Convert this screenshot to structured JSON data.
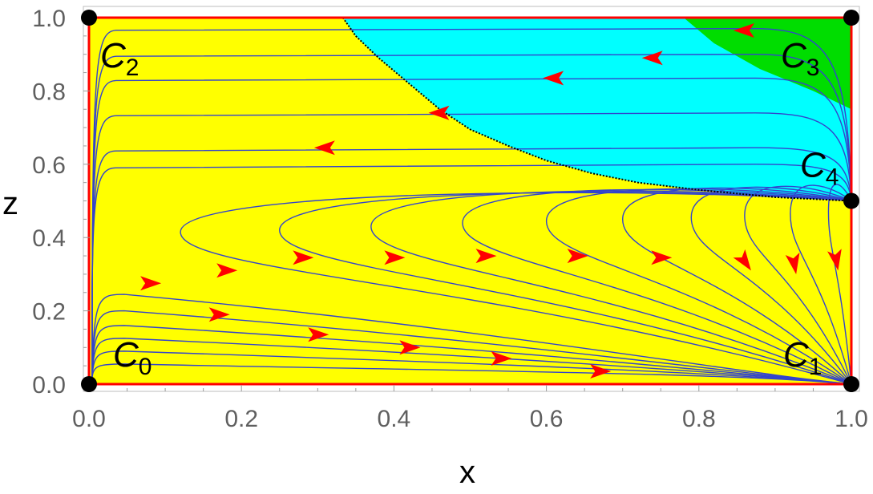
{
  "chart_data": {
    "type": "phase-portrait",
    "title": "",
    "xlabel": "x",
    "ylabel": "z",
    "xlim": [
      0,
      1
    ],
    "ylim": [
      0,
      1
    ],
    "xticks": [
      "0.0",
      "0.2",
      "0.4",
      "0.6",
      "0.8",
      "1.0"
    ],
    "yticks": [
      "0.0",
      "0.2",
      "0.4",
      "0.6",
      "0.8",
      "1.0"
    ],
    "colors": {
      "yellow_region": "#ffff00",
      "cyan_region": "#00ffff",
      "green_region": "#00dd00",
      "streamline": "#3344cc",
      "arrow": "#ff0000",
      "boundary": "#ff0000",
      "separatrix": "#000000",
      "point": "#000000"
    },
    "regions": [
      {
        "name": "yellow",
        "color": "#ffff00"
      },
      {
        "name": "cyan",
        "color": "#00ffff",
        "boundary": "separatrix"
      },
      {
        "name": "green",
        "color": "#00dd00",
        "boundary": "curve"
      }
    ],
    "separatrix": {
      "style": "dotted",
      "points": [
        [
          0.333,
          1.0
        ],
        [
          0.35,
          0.95
        ],
        [
          0.38,
          0.89
        ],
        [
          0.42,
          0.82
        ],
        [
          0.46,
          0.75
        ],
        [
          0.5,
          0.695
        ],
        [
          0.55,
          0.65
        ],
        [
          0.6,
          0.61
        ],
        [
          0.66,
          0.575
        ],
        [
          0.72,
          0.55
        ],
        [
          0.8,
          0.53
        ],
        [
          0.9,
          0.51
        ],
        [
          1.0,
          0.5
        ]
      ]
    },
    "green_boundary": [
      [
        0.78,
        1.0
      ],
      [
        0.82,
        0.93
      ],
      [
        0.88,
        0.86
      ],
      [
        0.95,
        0.8
      ],
      [
        1.0,
        0.75
      ]
    ],
    "critical_points": [
      {
        "label": "C",
        "sub": "0",
        "x": 0.0,
        "z": 0.0
      },
      {
        "label": "C",
        "sub": "1",
        "x": 1.0,
        "z": 0.0
      },
      {
        "label": "C",
        "sub": "2",
        "x": 0.0,
        "z": 1.0
      },
      {
        "label": "C",
        "sub": "3",
        "x": 1.0,
        "z": 1.0
      },
      {
        "label": "C",
        "sub": "4",
        "x": 1.0,
        "z": 0.5
      }
    ],
    "streamlines": {
      "upper_from_C4_to_C2_z": [
        0.97,
        0.9,
        0.835,
        0.74,
        0.645,
        0.6
      ],
      "loop_turnaround": [
        [
          0.12,
          0.415
        ],
        [
          0.25,
          0.42
        ],
        [
          0.37,
          0.43
        ],
        [
          0.49,
          0.44
        ],
        [
          0.6,
          0.445
        ],
        [
          0.7,
          0.45
        ],
        [
          0.79,
          0.455
        ],
        [
          0.86,
          0.46
        ],
        [
          0.92,
          0.465
        ],
        [
          0.97,
          0.47
        ]
      ],
      "lower_from_C0_to_C1_z": [
        0.055,
        0.09,
        0.125,
        0.16,
        0.2,
        0.245
      ]
    },
    "arrows": [
      {
        "x": 0.86,
        "z": 0.965,
        "dir": "left"
      },
      {
        "x": 0.74,
        "z": 0.89,
        "dir": "left"
      },
      {
        "x": 0.61,
        "z": 0.835,
        "dir": "left"
      },
      {
        "x": 0.46,
        "z": 0.74,
        "dir": "left"
      },
      {
        "x": 0.31,
        "z": 0.645,
        "dir": "left"
      },
      {
        "x": 0.08,
        "z": 0.275,
        "dir": "right"
      },
      {
        "x": 0.18,
        "z": 0.31,
        "dir": "right"
      },
      {
        "x": 0.28,
        "z": 0.345,
        "dir": "right"
      },
      {
        "x": 0.4,
        "z": 0.345,
        "dir": "right"
      },
      {
        "x": 0.52,
        "z": 0.35,
        "dir": "right"
      },
      {
        "x": 0.64,
        "z": 0.35,
        "dir": "right"
      },
      {
        "x": 0.75,
        "z": 0.345,
        "dir": "right"
      },
      {
        "x": 0.86,
        "z": 0.335,
        "dir": "down-right"
      },
      {
        "x": 0.925,
        "z": 0.33,
        "dir": "down"
      },
      {
        "x": 0.98,
        "z": 0.34,
        "dir": "down"
      },
      {
        "x": 0.17,
        "z": 0.19,
        "dir": "right"
      },
      {
        "x": 0.3,
        "z": 0.135,
        "dir": "right"
      },
      {
        "x": 0.42,
        "z": 0.1,
        "dir": "right"
      },
      {
        "x": 0.54,
        "z": 0.07,
        "dir": "right"
      },
      {
        "x": 0.67,
        "z": 0.035,
        "dir": "right"
      }
    ]
  }
}
